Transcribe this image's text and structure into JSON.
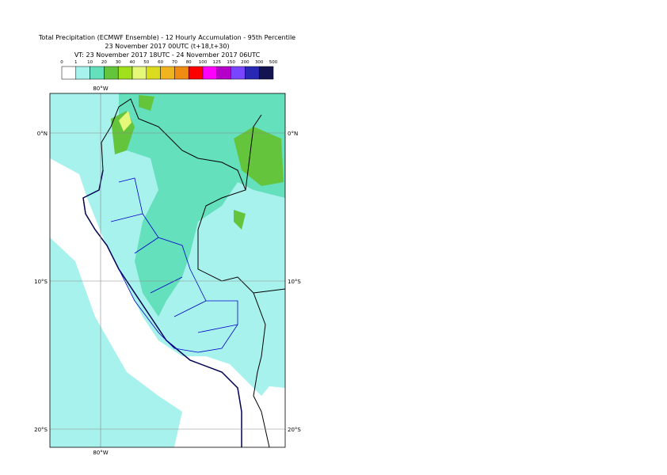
{
  "title": [
    "Total Precipitation (ECMWF Ensemble) - 12 Hourly Accumulation - 95th Percentile",
    "23 November 2017 00UTC (t+18,t+30)",
    "VT: 23 November 2017 18UTC - 24 November 2017 06UTC"
  ],
  "legend": {
    "labels": [
      "0",
      "1",
      "10",
      "20",
      "30",
      "40",
      "50",
      "60",
      "70",
      "80",
      "100",
      "125",
      "150",
      "200",
      "300",
      "500"
    ],
    "colors": [
      "#ffffff",
      "#a8f2ee",
      "#64e0bc",
      "#64c43c",
      "#a0e01c",
      "#e6f87a",
      "#dcdc1e",
      "#f0b41e",
      "#f08c14",
      "#ff0000",
      "#ff00ff",
      "#b400c8",
      "#7846ff",
      "#2828b4",
      "#141450"
    ]
  },
  "map": {
    "lon_labels": [
      "80°W"
    ],
    "lat_labels": [
      "0°N",
      "10°S",
      "20°S"
    ]
  }
}
